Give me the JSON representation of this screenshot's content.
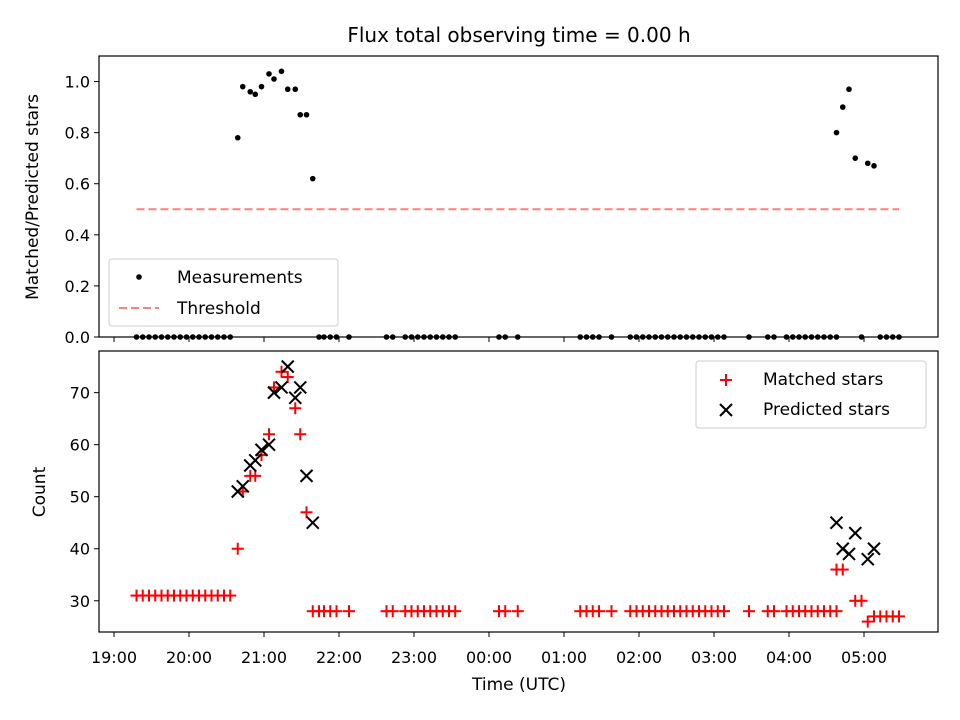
{
  "chart_data": [
    {
      "type": "scatter",
      "title": "Flux total observing time = 0.00 h",
      "xlabel": "",
      "ylabel": "Matched/Predicted stars",
      "xlim": [
        "19:00",
        "06:00"
      ],
      "ylim": [
        0,
        1.1
      ],
      "yticks": [
        "0.0",
        "0.2",
        "0.4",
        "0.6",
        "0.8",
        "1.0"
      ],
      "legend": {
        "placement": "lower-left",
        "entries": [
          "Measurements",
          "Threshold"
        ]
      },
      "colors": {
        "measurements": "#000000",
        "threshold": "#ff7f7f"
      },
      "series": [
        {
          "name": "Measurements",
          "points": [
            [
              "19:18",
              0
            ],
            [
              "19:23",
              0
            ],
            [
              "19:28",
              0
            ],
            [
              "19:33",
              0
            ],
            [
              "19:38",
              0
            ],
            [
              "19:43",
              0
            ],
            [
              "19:48",
              0
            ],
            [
              "19:53",
              0
            ],
            [
              "19:58",
              0
            ],
            [
              "20:03",
              0
            ],
            [
              "20:08",
              0
            ],
            [
              "20:13",
              0
            ],
            [
              "20:18",
              0
            ],
            [
              "20:23",
              0
            ],
            [
              "20:28",
              0
            ],
            [
              "20:33",
              0
            ],
            [
              "20:39",
              0.78
            ],
            [
              "20:43",
              0.98
            ],
            [
              "20:49",
              0.96
            ],
            [
              "20:53",
              0.95
            ],
            [
              "20:58",
              0.98
            ],
            [
              "21:04",
              1.03
            ],
            [
              "21:08",
              1.01
            ],
            [
              "21:14",
              1.04
            ],
            [
              "21:19",
              0.97
            ],
            [
              "21:25",
              0.97
            ],
            [
              "21:29",
              0.87
            ],
            [
              "21:34",
              0.87
            ],
            [
              "21:39",
              0.62
            ],
            [
              "21:44",
              0
            ],
            [
              "21:48",
              0
            ],
            [
              "21:53",
              0
            ],
            [
              "21:58",
              0
            ],
            [
              "22:08",
              0
            ],
            [
              "22:38",
              0
            ],
            [
              "22:43",
              0
            ],
            [
              "22:53",
              0
            ],
            [
              "22:58",
              0
            ],
            [
              "23:03",
              0
            ],
            [
              "23:08",
              0
            ],
            [
              "23:13",
              0
            ],
            [
              "23:18",
              0
            ],
            [
              "23:23",
              0
            ],
            [
              "23:28",
              0
            ],
            [
              "23:33",
              0
            ],
            [
              "00:08",
              0
            ],
            [
              "00:13",
              0
            ],
            [
              "00:23",
              0
            ],
            [
              "01:13",
              0
            ],
            [
              "01:18",
              0
            ],
            [
              "01:23",
              0
            ],
            [
              "01:28",
              0
            ],
            [
              "01:38",
              0
            ],
            [
              "01:53",
              0
            ],
            [
              "01:58",
              0
            ],
            [
              "02:03",
              0
            ],
            [
              "02:08",
              0
            ],
            [
              "02:13",
              0
            ],
            [
              "02:18",
              0
            ],
            [
              "02:23",
              0
            ],
            [
              "02:28",
              0
            ],
            [
              "02:33",
              0
            ],
            [
              "02:38",
              0
            ],
            [
              "02:43",
              0
            ],
            [
              "02:48",
              0
            ],
            [
              "02:53",
              0
            ],
            [
              "02:58",
              0
            ],
            [
              "03:03",
              0
            ],
            [
              "03:08",
              0
            ],
            [
              "03:28",
              0
            ],
            [
              "03:43",
              0
            ],
            [
              "03:48",
              0
            ],
            [
              "03:58",
              0
            ],
            [
              "04:03",
              0
            ],
            [
              "04:08",
              0
            ],
            [
              "04:13",
              0
            ],
            [
              "04:18",
              0
            ],
            [
              "04:23",
              0
            ],
            [
              "04:28",
              0
            ],
            [
              "04:33",
              0
            ],
            [
              "04:38",
              0
            ],
            [
              "04:38",
              0.8
            ],
            [
              "04:43",
              0.9
            ],
            [
              "04:48",
              0.97
            ],
            [
              "04:53",
              0.7
            ],
            [
              "04:58",
              0
            ],
            [
              "05:03",
              0.68
            ],
            [
              "05:08",
              0.67
            ],
            [
              "05:13",
              0
            ],
            [
              "05:18",
              0
            ],
            [
              "05:23",
              0
            ],
            [
              "05:28",
              0
            ]
          ]
        },
        {
          "name": "Threshold",
          "style": "dashed",
          "points": [
            [
              "19:18",
              0.5
            ],
            [
              "05:28",
              0.5
            ]
          ]
        }
      ]
    },
    {
      "type": "scatter",
      "title": "",
      "xlabel": "Time (UTC)",
      "ylabel": "Count",
      "xlim": [
        "19:00",
        "06:00"
      ],
      "ylim": [
        24,
        78
      ],
      "xticks": [
        "19:00",
        "20:00",
        "21:00",
        "22:00",
        "23:00",
        "00:00",
        "01:00",
        "02:00",
        "03:00",
        "04:00",
        "05:00"
      ],
      "yticks": [
        "30",
        "40",
        "50",
        "60",
        "70"
      ],
      "legend": {
        "placement": "upper-right",
        "entries": [
          "Matched stars",
          "Predicted stars"
        ]
      },
      "colors": {
        "matched": "#ff0000",
        "predicted": "#000000"
      },
      "series": [
        {
          "name": "Matched stars",
          "marker": "plus",
          "points": [
            [
              "19:18",
              31
            ],
            [
              "19:23",
              31
            ],
            [
              "19:28",
              31
            ],
            [
              "19:33",
              31
            ],
            [
              "19:38",
              31
            ],
            [
              "19:43",
              31
            ],
            [
              "19:48",
              31
            ],
            [
              "19:53",
              31
            ],
            [
              "19:58",
              31
            ],
            [
              "20:03",
              31
            ],
            [
              "20:08",
              31
            ],
            [
              "20:13",
              31
            ],
            [
              "20:18",
              31
            ],
            [
              "20:23",
              31
            ],
            [
              "20:28",
              31
            ],
            [
              "20:33",
              31
            ],
            [
              "20:39",
              40
            ],
            [
              "20:43",
              51
            ],
            [
              "20:49",
              54
            ],
            [
              "20:53",
              54
            ],
            [
              "20:58",
              58
            ],
            [
              "21:04",
              62
            ],
            [
              "21:08",
              71
            ],
            [
              "21:14",
              74
            ],
            [
              "21:19",
              73
            ],
            [
              "21:25",
              67
            ],
            [
              "21:29",
              62
            ],
            [
              "21:34",
              47
            ],
            [
              "21:39",
              28
            ],
            [
              "21:44",
              28
            ],
            [
              "21:48",
              28
            ],
            [
              "21:53",
              28
            ],
            [
              "21:58",
              28
            ],
            [
              "22:08",
              28
            ],
            [
              "22:38",
              28
            ],
            [
              "22:43",
              28
            ],
            [
              "22:53",
              28
            ],
            [
              "22:58",
              28
            ],
            [
              "23:03",
              28
            ],
            [
              "23:08",
              28
            ],
            [
              "23:13",
              28
            ],
            [
              "23:18",
              28
            ],
            [
              "23:23",
              28
            ],
            [
              "23:28",
              28
            ],
            [
              "23:33",
              28
            ],
            [
              "00:08",
              28
            ],
            [
              "00:13",
              28
            ],
            [
              "00:23",
              28
            ],
            [
              "01:13",
              28
            ],
            [
              "01:18",
              28
            ],
            [
              "01:23",
              28
            ],
            [
              "01:28",
              28
            ],
            [
              "01:38",
              28
            ],
            [
              "01:53",
              28
            ],
            [
              "01:58",
              28
            ],
            [
              "02:03",
              28
            ],
            [
              "02:08",
              28
            ],
            [
              "02:13",
              28
            ],
            [
              "02:18",
              28
            ],
            [
              "02:23",
              28
            ],
            [
              "02:28",
              28
            ],
            [
              "02:33",
              28
            ],
            [
              "02:38",
              28
            ],
            [
              "02:43",
              28
            ],
            [
              "02:48",
              28
            ],
            [
              "02:53",
              28
            ],
            [
              "02:58",
              28
            ],
            [
              "03:03",
              28
            ],
            [
              "03:08",
              28
            ],
            [
              "03:28",
              28
            ],
            [
              "03:43",
              28
            ],
            [
              "03:48",
              28
            ],
            [
              "03:58",
              28
            ],
            [
              "04:03",
              28
            ],
            [
              "04:08",
              28
            ],
            [
              "04:13",
              28
            ],
            [
              "04:18",
              28
            ],
            [
              "04:23",
              28
            ],
            [
              "04:28",
              28
            ],
            [
              "04:33",
              28
            ],
            [
              "04:38",
              28
            ],
            [
              "04:38",
              36
            ],
            [
              "04:43",
              36
            ],
            [
              "04:53",
              30
            ],
            [
              "04:58",
              30
            ],
            [
              "05:03",
              26
            ],
            [
              "05:08",
              27
            ],
            [
              "05:13",
              27
            ],
            [
              "05:18",
              27
            ],
            [
              "05:23",
              27
            ],
            [
              "05:28",
              27
            ]
          ]
        },
        {
          "name": "Predicted stars",
          "marker": "x",
          "points": [
            [
              "20:39",
              51
            ],
            [
              "20:43",
              52
            ],
            [
              "20:49",
              56
            ],
            [
              "20:53",
              57
            ],
            [
              "20:58",
              59
            ],
            [
              "21:04",
              60
            ],
            [
              "21:08",
              70
            ],
            [
              "21:14",
              71
            ],
            [
              "21:19",
              75
            ],
            [
              "21:25",
              69
            ],
            [
              "21:29",
              71
            ],
            [
              "21:34",
              54
            ],
            [
              "21:39",
              45
            ],
            [
              "04:38",
              45
            ],
            [
              "04:43",
              40
            ],
            [
              "04:48",
              39
            ],
            [
              "04:53",
              43
            ],
            [
              "05:03",
              38
            ],
            [
              "05:08",
              40
            ]
          ]
        }
      ]
    }
  ]
}
